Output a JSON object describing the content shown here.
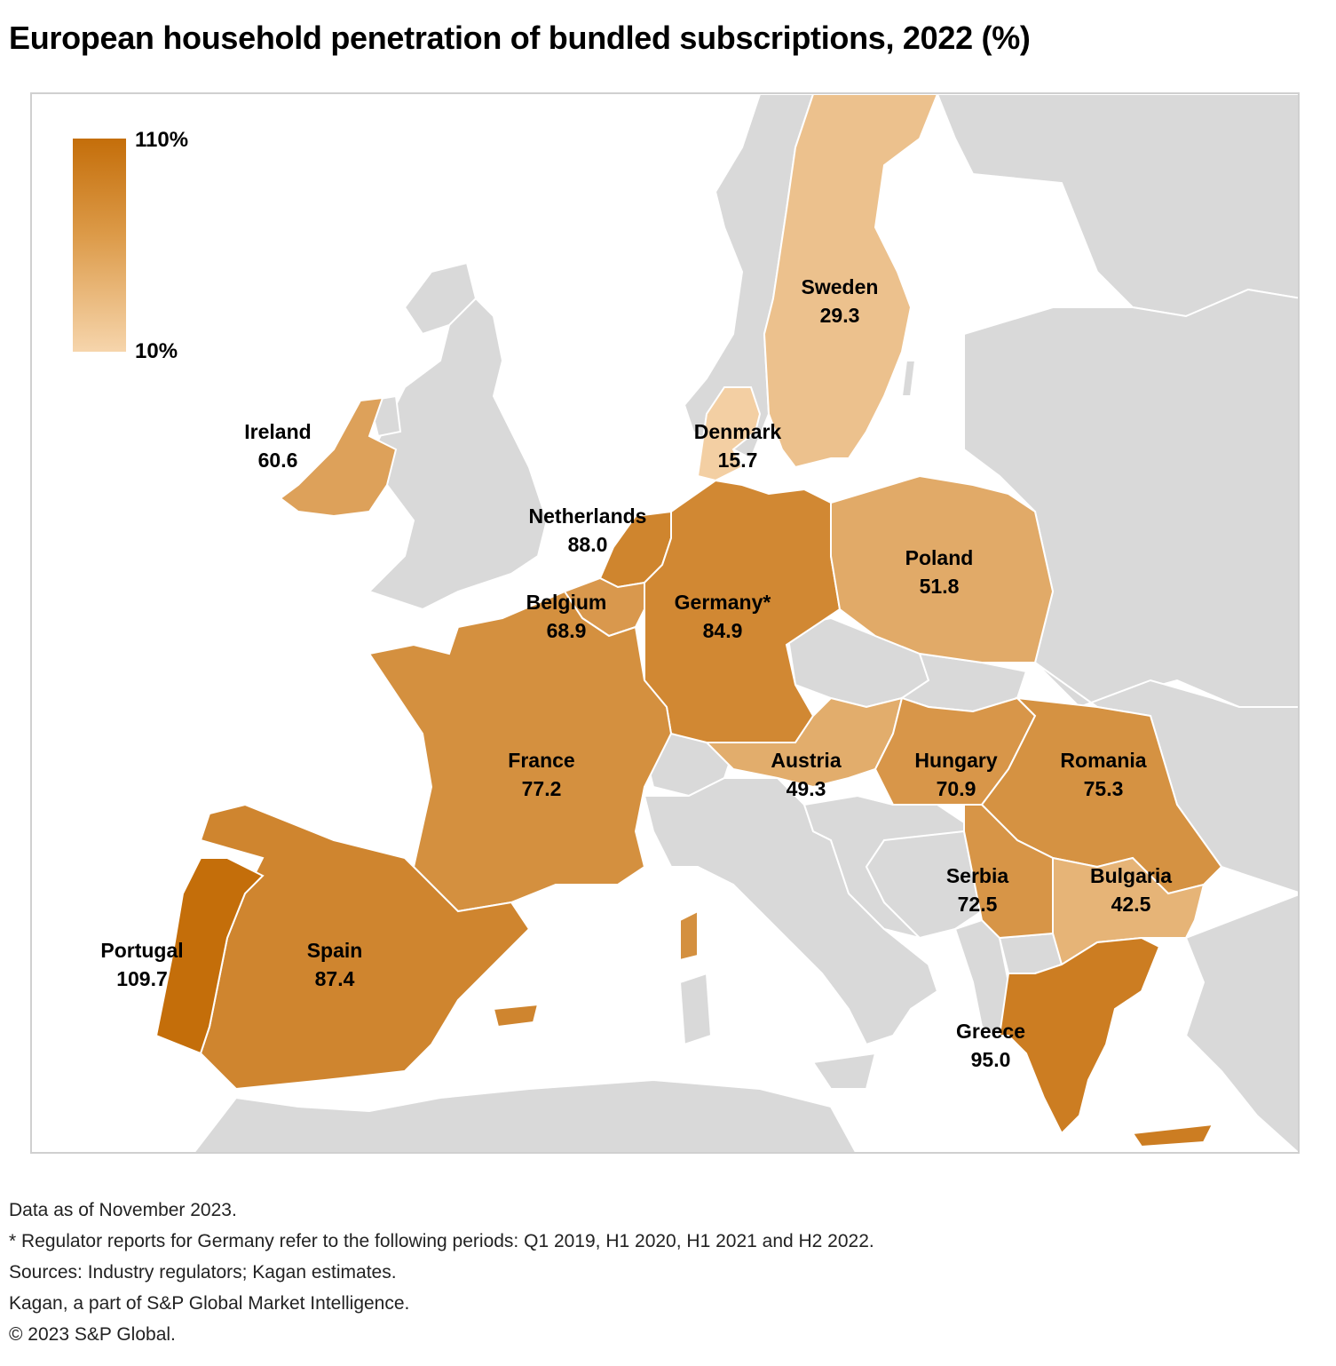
{
  "title": "European household penetration of bundled subscriptions, 2022 (%)",
  "legend": {
    "max_label": "110%",
    "min_label": "10%",
    "min_value": 10,
    "max_value": 110,
    "color_low": "#f6d5ac",
    "color_high": "#c46e0a"
  },
  "background_land_color": "#d9d9d9",
  "countries": [
    {
      "name": "Sweden",
      "value": 29.3,
      "value_label": "29.3"
    },
    {
      "name": "Ireland",
      "value": 60.6,
      "value_label": "60.6"
    },
    {
      "name": "Denmark",
      "value": 15.7,
      "value_label": "15.7"
    },
    {
      "name": "Netherlands",
      "value": 88.0,
      "value_label": "88.0"
    },
    {
      "name": "Poland",
      "value": 51.8,
      "value_label": "51.8"
    },
    {
      "name": "Belgium",
      "value": 68.9,
      "value_label": "68.9"
    },
    {
      "name": "Germany*",
      "value": 84.9,
      "value_label": "84.9"
    },
    {
      "name": "France",
      "value": 77.2,
      "value_label": "77.2"
    },
    {
      "name": "Austria",
      "value": 49.3,
      "value_label": "49.3"
    },
    {
      "name": "Hungary",
      "value": 70.9,
      "value_label": "70.9"
    },
    {
      "name": "Romania",
      "value": 75.3,
      "value_label": "75.3"
    },
    {
      "name": "Serbia",
      "value": 72.5,
      "value_label": "72.5"
    },
    {
      "name": "Bulgaria",
      "value": 42.5,
      "value_label": "42.5"
    },
    {
      "name": "Portugal",
      "value": 109.7,
      "value_label": "109.7"
    },
    {
      "name": "Spain",
      "value": 87.4,
      "value_label": "87.4"
    },
    {
      "name": "Greece",
      "value": 95.0,
      "value_label": "95.0"
    }
  ],
  "notes": {
    "line1": "Data as of November 2023.",
    "line2": "* Regulator reports for Germany refer to the following periods: Q1 2019, H1 2020, H1 2021 and H2 2022.",
    "line3": "Sources: Industry regulators; Kagan estimates.",
    "line4": "Kagan, a part of S&P Global Market Intelligence.",
    "line5": "© 2023 S&P Global."
  }
}
